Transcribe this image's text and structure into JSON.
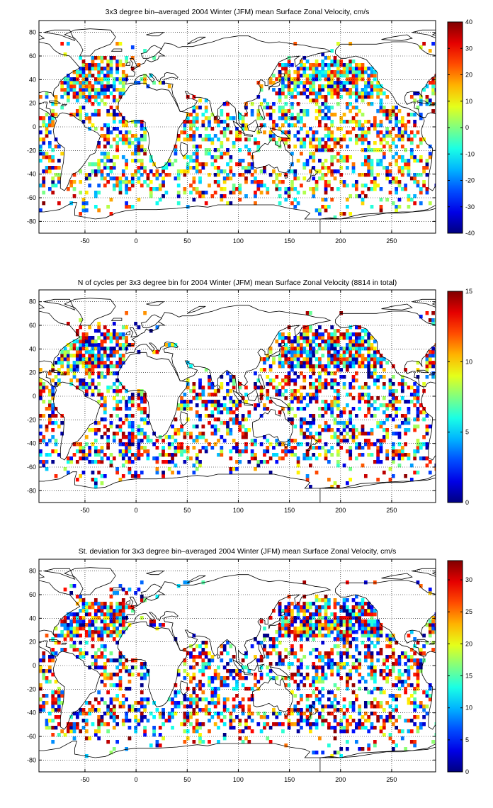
{
  "chart_data": [
    {
      "type": "heatmap",
      "title": "3x3 degree bin–averaged 2004 Winter (JFM) mean Surface Zonal Velocity, cm/s",
      "xlim": [
        -95,
        293
      ],
      "ylim": [
        -90,
        90
      ],
      "x_ticks": [
        "-50",
        "0",
        "50",
        "100",
        "150",
        "200",
        "250"
      ],
      "y_ticks": [
        "80",
        "60",
        "40",
        "20",
        "0",
        "-20",
        "-40",
        "-60",
        "-80"
      ],
      "colorbar_range": [
        -40,
        40
      ],
      "colorbar_ticks": [
        "40",
        "30",
        "20",
        "10",
        "0",
        "-10",
        "-20",
        "-30",
        "-40"
      ],
      "grid": true,
      "colormap": "jet",
      "seed": 7
    },
    {
      "type": "heatmap",
      "title": "N of cycles per 3x3 degree bin for 2004 Winter (JFM) mean Surface Zonal Velocity (8814 in total)",
      "xlim": [
        -95,
        293
      ],
      "ylim": [
        -90,
        90
      ],
      "x_ticks": [
        "-50",
        "0",
        "50",
        "100",
        "150",
        "200",
        "250"
      ],
      "y_ticks": [
        "80",
        "60",
        "40",
        "20",
        "0",
        "-20",
        "-40",
        "-60",
        "-80"
      ],
      "colorbar_range": [
        0,
        15
      ],
      "colorbar_ticks": [
        "15",
        "10",
        "5",
        "0"
      ],
      "grid": true,
      "colormap": "jet",
      "seed": 19
    },
    {
      "type": "heatmap",
      "title": "St. deviation for 3x3 degree bin–averaged 2004 Winter (JFM) mean Surface Zonal Velocity, cm/s",
      "xlim": [
        -95,
        293
      ],
      "ylim": [
        -90,
        90
      ],
      "x_ticks": [
        "-50",
        "0",
        "50",
        "100",
        "150",
        "200",
        "250"
      ],
      "y_ticks": [
        "80",
        "60",
        "40",
        "20",
        "0",
        "-20",
        "-40",
        "-60",
        "-80"
      ],
      "colorbar_range": [
        0,
        33
      ],
      "colorbar_ticks": [
        "30",
        "25",
        "20",
        "15",
        "10",
        "5",
        "0"
      ],
      "grid": true,
      "colormap": "jet",
      "seed": 31
    }
  ],
  "colors": {
    "axis": "#000000",
    "grid": "#000000",
    "background": "#ffffff"
  }
}
